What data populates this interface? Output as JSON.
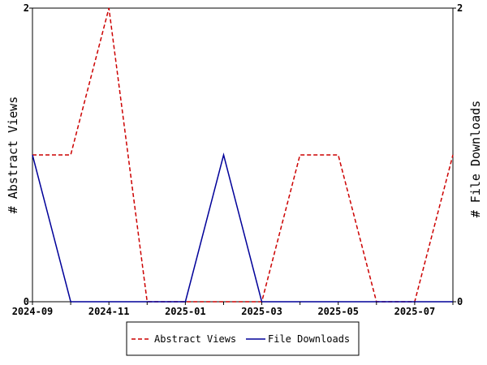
{
  "chart_data": {
    "type": "line",
    "x": [
      "2024-09",
      "2024-10",
      "2024-11",
      "2024-12",
      "2025-01",
      "2025-02",
      "2025-03",
      "2025-04",
      "2025-05",
      "2025-06",
      "2025-07",
      "2025-08"
    ],
    "x_tick_labels": [
      "2024-09",
      "2024-11",
      "2025-01",
      "2025-03",
      "2025-05",
      "2025-07"
    ],
    "series": [
      {
        "name": "Abstract Views",
        "axis": "left",
        "color": "#cc0000",
        "dash": "dashed",
        "values": [
          1,
          1,
          2,
          0,
          0,
          0,
          0,
          1,
          1,
          0,
          0,
          1
        ]
      },
      {
        "name": "File Downloads",
        "axis": "right",
        "color": "#000099",
        "dash": "solid",
        "values": [
          1,
          0,
          0,
          0,
          0,
          1,
          0,
          0,
          0,
          0,
          0,
          0
        ]
      }
    ],
    "ylabel_left": "# Abstract Views",
    "ylabel_right": "# File Downloads",
    "ylim_left": [
      0,
      2
    ],
    "ylim_right": [
      0,
      2
    ],
    "y_tick_labels_left": [
      "0",
      "2"
    ],
    "y_tick_labels_right": [
      "0",
      "2"
    ],
    "grid": false,
    "legend_position": "bottom"
  }
}
